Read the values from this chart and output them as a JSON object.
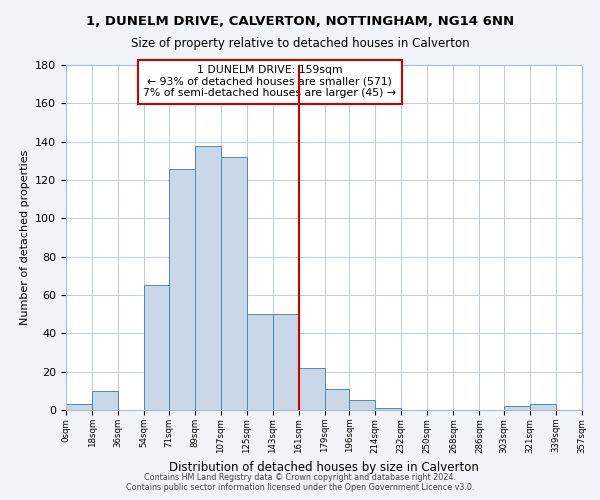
{
  "title": "1, DUNELM DRIVE, CALVERTON, NOTTINGHAM, NG14 6NN",
  "subtitle": "Size of property relative to detached houses in Calverton",
  "xlabel": "Distribution of detached houses by size in Calverton",
  "ylabel": "Number of detached properties",
  "bar_color": "#c8d8e8",
  "bar_edge_color": "#5588aa",
  "bin_edges": [
    0,
    18,
    36,
    54,
    71,
    89,
    107,
    125,
    143,
    161,
    179,
    196,
    214,
    232,
    250,
    268,
    286,
    303,
    321,
    339,
    357
  ],
  "bin_labels": [
    "0sqm",
    "18sqm",
    "36sqm",
    "54sqm",
    "71sqm",
    "89sqm",
    "107sqm",
    "125sqm",
    "143sqm",
    "161sqm",
    "179sqm",
    "196sqm",
    "214sqm",
    "232sqm",
    "250sqm",
    "268sqm",
    "286sqm",
    "303sqm",
    "321sqm",
    "339sqm",
    "357sqm"
  ],
  "counts": [
    3,
    10,
    0,
    65,
    126,
    138,
    132,
    50,
    50,
    22,
    11,
    5,
    1,
    0,
    0,
    0,
    0,
    2,
    3,
    0
  ],
  "vline_x": 161,
  "vline_color": "#cc0000",
  "annotation_line1": "1 DUNELM DRIVE: 159sqm",
  "annotation_line2": "← 93% of detached houses are smaller (571)",
  "annotation_line3": "7% of semi-detached houses are larger (45) →",
  "ylim": [
    0,
    180
  ],
  "yticks": [
    0,
    20,
    40,
    60,
    80,
    100,
    120,
    140,
    160,
    180
  ],
  "footer1": "Contains HM Land Registry data © Crown copyright and database right 2024.",
  "footer2": "Contains public sector information licensed under the Open Government Licence v3.0.",
  "bg_color": "#f0f4f8",
  "plot_bg_color": "#ffffff"
}
